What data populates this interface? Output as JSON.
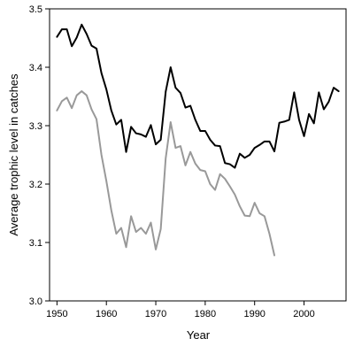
{
  "chart_data": {
    "type": "line",
    "title": "",
    "xlabel": "Year",
    "ylabel": "Average trophic level in catches",
    "xlim": [
      1948.5,
      2008.5
    ],
    "ylim": [
      3.0,
      3.5
    ],
    "xticks": [
      1950,
      1960,
      1970,
      1980,
      1990,
      2000
    ],
    "xtick_labels": [
      "1950",
      "1960",
      "1970",
      "1980",
      "1990",
      "2000"
    ],
    "yticks": [
      3.0,
      3.1,
      3.2,
      3.3,
      3.4,
      3.5
    ],
    "ytick_labels": [
      "3.0",
      "3.1",
      "3.2",
      "3.3",
      "3.4",
      "3.5"
    ],
    "grid": false,
    "legend": "none",
    "series": [
      {
        "color": "#000000",
        "x": [
          1950,
          1951,
          1952,
          1953,
          1954,
          1955,
          1956,
          1957,
          1958,
          1959,
          1960,
          1961,
          1962,
          1963,
          1964,
          1965,
          1966,
          1967,
          1968,
          1969,
          1970,
          1971,
          1972,
          1973,
          1974,
          1975,
          1976,
          1977,
          1978,
          1979,
          1980,
          1981,
          1982,
          1983,
          1984,
          1985,
          1986,
          1987,
          1988,
          1989,
          1990,
          1991,
          1992,
          1993,
          1994,
          1995,
          1996,
          1997,
          1998,
          1999,
          2000,
          2001,
          2002,
          2003,
          2004,
          2005,
          2006,
          2007
        ],
        "y": [
          3.452,
          3.465,
          3.465,
          3.436,
          3.451,
          3.473,
          3.457,
          3.437,
          3.432,
          3.39,
          3.362,
          3.326,
          3.302,
          3.31,
          3.255,
          3.298,
          3.287,
          3.285,
          3.281,
          3.301,
          3.268,
          3.276,
          3.358,
          3.4,
          3.365,
          3.356,
          3.331,
          3.334,
          3.31,
          3.291,
          3.291,
          3.276,
          3.266,
          3.265,
          3.236,
          3.234,
          3.228,
          3.252,
          3.245,
          3.25,
          3.262,
          3.267,
          3.273,
          3.273,
          3.256,
          3.305,
          3.307,
          3.31,
          3.357,
          3.31,
          3.282,
          3.32,
          3.304,
          3.357,
          3.328,
          3.341,
          3.365,
          3.359
        ]
      },
      {
        "color": "#999999",
        "x": [
          1950,
          1951,
          1952,
          1953,
          1954,
          1955,
          1956,
          1957,
          1958,
          1959,
          1960,
          1961,
          1962,
          1963,
          1964,
          1965,
          1966,
          1967,
          1968,
          1969,
          1970,
          1971,
          1972,
          1973,
          1974,
          1975,
          1976,
          1977,
          1978,
          1979,
          1980,
          1981,
          1982,
          1983,
          1984,
          1985,
          1986,
          1987,
          1988,
          1989,
          1990,
          1991,
          1992,
          1993,
          1994
        ],
        "y": [
          3.326,
          3.342,
          3.348,
          3.33,
          3.352,
          3.359,
          3.352,
          3.328,
          3.311,
          3.25,
          3.205,
          3.155,
          3.115,
          3.125,
          3.092,
          3.145,
          3.118,
          3.125,
          3.115,
          3.134,
          3.088,
          3.123,
          3.244,
          3.306,
          3.262,
          3.265,
          3.232,
          3.255,
          3.235,
          3.224,
          3.222,
          3.2,
          3.19,
          3.217,
          3.209,
          3.196,
          3.182,
          3.162,
          3.146,
          3.145,
          3.168,
          3.15,
          3.145,
          3.115,
          3.078
        ]
      }
    ]
  }
}
